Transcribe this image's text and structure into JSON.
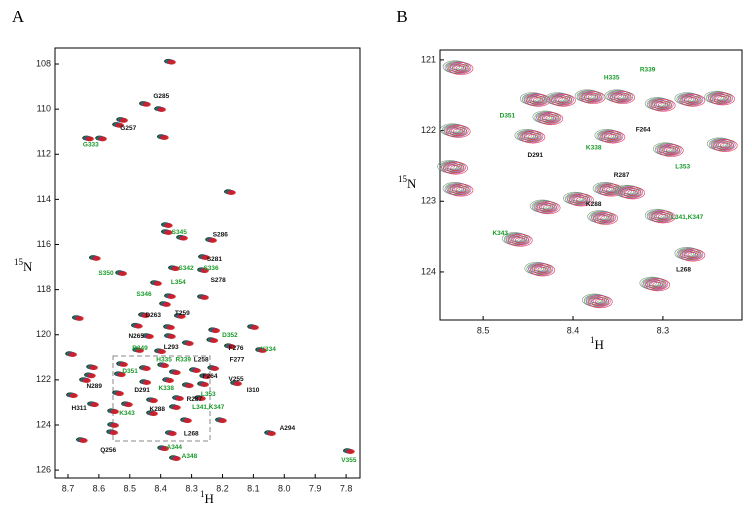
{
  "chart_data": [
    {
      "type": "scatter",
      "panel_label": "A",
      "xlabel_isotope": "1",
      "xlabel_nucleus": "H",
      "ylabel_isotope": "15",
      "ylabel_nucleus": "N",
      "xlim": [
        8.742,
        7.755
      ],
      "ylim": [
        107.29,
        126.35
      ],
      "xticks": [
        8.7,
        8.6,
        8.5,
        8.4,
        8.3,
        8.2,
        8.1,
        {
          "value": 8.0,
          "label": "8.0"
        },
        7.9,
        7.8
      ],
      "yticks": [
        108,
        110,
        112,
        114,
        116,
        118,
        120,
        122,
        124,
        126
      ],
      "peak_colors": [
        "#111111",
        "#1a9a2a",
        "#2244cc",
        "#d81e1e"
      ],
      "x": [
        8.37,
        8.402,
        8.451,
        8.525,
        8.538,
        8.593,
        8.635,
        8.393,
        8.176,
        8.38,
        8.38,
        8.237,
        8.331,
        8.613,
        8.26,
        8.528,
        8.357,
        8.263,
        8.415,
        8.263,
        8.37,
        8.386,
        8.668,
        8.454,
        8.338,
        8.477,
        8.373,
        8.227,
        8.101,
        8.441,
        8.37,
        8.233,
        8.312,
        8.69,
        8.402,
        8.473,
        8.176,
        8.075,
        8.622,
        8.525,
        8.451,
        8.392,
        8.289,
        8.23,
        8.256,
        8.629,
        8.532,
        8.354,
        8.45,
        8.376,
        8.312,
        8.263,
        8.156,
        8.645,
        8.687,
        8.538,
        8.509,
        8.428,
        8.344,
        8.273,
        8.619,
        8.354,
        8.428,
        8.554,
        8.318,
        8.205,
        8.554,
        8.367,
        8.046,
        8.655,
        8.557,
        8.392,
        8.354,
        7.791
      ],
      "y": [
        107.9,
        110.0,
        109.77,
        110.48,
        110.7,
        111.3,
        111.3,
        111.24,
        113.68,
        115.14,
        115.45,
        115.8,
        115.7,
        116.6,
        116.56,
        117.27,
        117.05,
        117.14,
        117.71,
        118.33,
        118.29,
        118.64,
        119.26,
        119.13,
        119.17,
        119.6,
        119.66,
        119.8,
        119.66,
        120.06,
        120.06,
        120.24,
        120.37,
        120.86,
        120.73,
        120.68,
        120.51,
        120.68,
        121.44,
        121.3,
        121.48,
        121.35,
        121.57,
        121.48,
        121.84,
        121.8,
        121.75,
        121.66,
        122.1,
        122.01,
        122.24,
        122.19,
        122.15,
        122.01,
        122.68,
        122.59,
        123.08,
        122.9,
        122.81,
        122.81,
        123.08,
        123.21,
        123.48,
        123.39,
        123.79,
        123.79,
        124.0,
        124.36,
        124.36,
        124.67,
        124.32,
        125.03,
        125.47,
        125.16
      ],
      "annotations": [
        {
          "text": "G285",
          "x": 8.398,
          "y": 109.42,
          "color": "#111111"
        },
        {
          "text": "G257",
          "x": 8.505,
          "y": 110.84,
          "color": "#111111"
        },
        {
          "text": "G333",
          "x": 8.626,
          "y": 111.59,
          "color": "#1a9a2a"
        },
        {
          "text": "S286",
          "x": 8.207,
          "y": 115.58,
          "color": "#111111"
        },
        {
          "text": "S345",
          "x": 8.34,
          "y": 115.45,
          "color": "#1a9a2a"
        },
        {
          "text": "S281",
          "x": 8.226,
          "y": 116.65,
          "color": "#111111"
        },
        {
          "text": "S342",
          "x": 8.318,
          "y": 117.05,
          "color": "#1a9a2a"
        },
        {
          "text": "S336",
          "x": 8.237,
          "y": 117.05,
          "color": "#1a9a2a"
        },
        {
          "text": "S278",
          "x": 8.214,
          "y": 117.58,
          "color": "#111111"
        },
        {
          "text": "S350",
          "x": 8.577,
          "y": 117.27,
          "color": "#1a9a2a"
        },
        {
          "text": "L354",
          "x": 8.343,
          "y": 117.67,
          "color": "#1a9a2a"
        },
        {
          "text": "S346",
          "x": 8.454,
          "y": 118.2,
          "color": "#1a9a2a"
        },
        {
          "text": "T259",
          "x": 8.33,
          "y": 119.04,
          "color": "#111111"
        },
        {
          "text": "D263",
          "x": 8.424,
          "y": 119.13,
          "color": "#111111"
        },
        {
          "text": "N265",
          "x": 8.479,
          "y": 120.06,
          "color": "#111111"
        },
        {
          "text": "D352",
          "x": 8.176,
          "y": 120.02,
          "color": "#1a9a2a"
        },
        {
          "text": "L293",
          "x": 8.366,
          "y": 120.55,
          "color": "#111111"
        },
        {
          "text": "F276",
          "x": 8.156,
          "y": 120.6,
          "color": "#111111"
        },
        {
          "text": "R349",
          "x": 8.467,
          "y": 120.6,
          "color": "#1a9a2a"
        },
        {
          "text": "Y334",
          "x": 8.052,
          "y": 120.64,
          "color": "#1a9a2a"
        },
        {
          "text": "H335",
          "x": 8.389,
          "y": 121.1,
          "color": "#1a9a2a"
        },
        {
          "text": "R339",
          "x": 8.327,
          "y": 121.1,
          "color": "#1a9a2a"
        },
        {
          "text": "L258",
          "x": 8.269,
          "y": 121.1,
          "color": "#111111"
        },
        {
          "text": "F277",
          "x": 8.153,
          "y": 121.1,
          "color": "#111111"
        },
        {
          "text": "D351",
          "x": 8.499,
          "y": 121.62,
          "color": "#1a9a2a"
        },
        {
          "text": "F264",
          "x": 8.24,
          "y": 121.84,
          "color": "#111111"
        },
        {
          "text": "V255",
          "x": 8.156,
          "y": 121.97,
          "color": "#111111"
        },
        {
          "text": "N289",
          "x": 8.615,
          "y": 122.28,
          "color": "#111111"
        },
        {
          "text": "D291",
          "x": 8.46,
          "y": 122.46,
          "color": "#111111"
        },
        {
          "text": "K338",
          "x": 8.382,
          "y": 122.37,
          "color": "#1a9a2a"
        },
        {
          "text": "I310",
          "x": 8.101,
          "y": 122.46,
          "color": "#111111"
        },
        {
          "text": "L353",
          "x": 8.246,
          "y": 122.63,
          "color": "#1a9a2a"
        },
        {
          "text": "R287",
          "x": 8.291,
          "y": 122.86,
          "color": "#111111"
        },
        {
          "text": "H311",
          "x": 8.664,
          "y": 123.26,
          "color": "#111111"
        },
        {
          "text": "K288",
          "x": 8.411,
          "y": 123.3,
          "color": "#111111"
        },
        {
          "text": "L341,K347",
          "x": 8.246,
          "y": 123.21,
          "color": "#1a9a2a"
        },
        {
          "text": "K343",
          "x": 8.509,
          "y": 123.48,
          "color": "#1a9a2a"
        },
        {
          "text": "L268",
          "x": 8.301,
          "y": 124.4,
          "color": "#111111"
        },
        {
          "text": "A294",
          "x": 7.99,
          "y": 124.14,
          "color": "#111111"
        },
        {
          "text": "Q256",
          "x": 8.57,
          "y": 125.12,
          "color": "#111111"
        },
        {
          "text": "A344",
          "x": 8.356,
          "y": 124.98,
          "color": "#1a9a2a"
        },
        {
          "text": "A348",
          "x": 8.307,
          "y": 125.38,
          "color": "#1a9a2a"
        },
        {
          "text": "V355",
          "x": 7.791,
          "y": 125.56,
          "color": "#1a9a2a"
        }
      ]
    },
    {
      "type": "contour",
      "panel_label": "B",
      "xlabel_isotope": "1",
      "xlabel_nucleus": "H",
      "ylabel_isotope": "15",
      "ylabel_nucleus": "N",
      "xlim": [
        8.548,
        8.212
      ],
      "ylim": [
        120.86,
        124.68
      ],
      "xticks": [
        8.5,
        8.4,
        8.3
      ],
      "yticks": [
        121,
        122,
        123,
        124
      ],
      "peak_colors": [
        "#888888",
        "#3aa040",
        "#b040c0",
        "#e03040"
      ],
      "x": [
        8.528,
        8.531,
        8.534,
        8.528,
        8.442,
        8.414,
        8.381,
        8.348,
        8.303,
        8.27,
        8.237,
        8.448,
        8.428,
        8.359,
        8.294,
        8.234,
        8.361,
        8.337,
        8.394,
        8.431,
        8.303,
        8.367,
        8.462,
        8.437,
        8.27,
        8.309,
        8.373
      ],
      "y": [
        121.11,
        122.0,
        122.52,
        122.83,
        121.56,
        121.56,
        121.52,
        121.52,
        121.63,
        121.56,
        121.54,
        122.08,
        121.82,
        122.08,
        122.27,
        122.2,
        122.83,
        122.87,
        122.97,
        123.08,
        123.21,
        123.23,
        123.54,
        123.96,
        123.75,
        124.17,
        124.41
      ],
      "annotations": [
        {
          "text": "H335",
          "x": 8.357,
          "y": 121.25,
          "color": "#1a9a2a"
        },
        {
          "text": "R339",
          "x": 8.317,
          "y": 121.14,
          "color": "#1a9a2a"
        },
        {
          "text": "D351",
          "x": 8.473,
          "y": 121.79,
          "color": "#1a9a2a"
        },
        {
          "text": "F264",
          "x": 8.322,
          "y": 121.99,
          "color": "#111111"
        },
        {
          "text": "D291",
          "x": 8.442,
          "y": 122.35,
          "color": "#111111"
        },
        {
          "text": "K338",
          "x": 8.377,
          "y": 122.24,
          "color": "#1a9a2a"
        },
        {
          "text": "L353",
          "x": 8.278,
          "y": 122.51,
          "color": "#1a9a2a"
        },
        {
          "text": "R287",
          "x": 8.346,
          "y": 122.63,
          "color": "#111111"
        },
        {
          "text": "K288",
          "x": 8.377,
          "y": 123.04,
          "color": "#111111"
        },
        {
          "text": "L341,K347",
          "x": 8.273,
          "y": 123.23,
          "color": "#1a9a2a"
        },
        {
          "text": "K343",
          "x": 8.481,
          "y": 123.45,
          "color": "#1a9a2a"
        },
        {
          "text": "L268",
          "x": 8.277,
          "y": 123.97,
          "color": "#111111"
        }
      ]
    }
  ]
}
